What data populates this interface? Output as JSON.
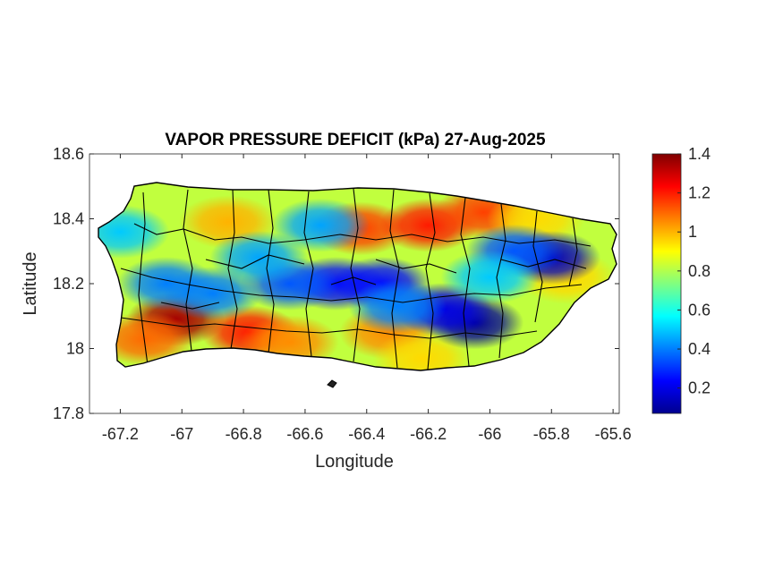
{
  "figure": {
    "title": "VAPOR PRESSURE DEFICIT (kPa) 27-Aug-2025",
    "xlabel": "Longitude",
    "ylabel": "Latitude"
  },
  "map": {
    "xlim": [
      -67.3,
      -65.58
    ],
    "ylim": [
      17.8,
      18.6
    ],
    "xticks": [
      -67.2,
      -67,
      -66.8,
      -66.6,
      -66.4,
      -66.2,
      -66,
      -65.8,
      -65.6
    ],
    "xtick_labels": [
      "-67.2",
      "-67",
      "-66.8",
      "-66.6",
      "-66.4",
      "-66.2",
      "-66",
      "-65.8",
      "-65.6"
    ],
    "yticks": [
      17.8,
      18,
      18.2,
      18.4,
      18.6
    ],
    "ytick_labels": [
      "17.8",
      "18",
      "18.2",
      "18.4",
      "18.6"
    ],
    "colormap": "jet",
    "field": "vapor pressure deficit",
    "units": "kPa",
    "boundaries": "municipalities of Puerto Rico",
    "region": "Puerto Rico"
  },
  "colorbar": {
    "range": [
      0.07,
      1.4
    ],
    "ticks": [
      0.2,
      0.4,
      0.6,
      0.8,
      1,
      1.2,
      1.4
    ],
    "tick_labels": [
      "0.2",
      "0.4",
      "0.6",
      "0.8",
      "1",
      "1.2",
      "1.4"
    ],
    "colors": [
      "#00008f",
      "#0000ff",
      "#0080ff",
      "#00ffff",
      "#80ff80",
      "#ffff00",
      "#ff8000",
      "#ff0000",
      "#800000"
    ]
  },
  "chart_data": {
    "type": "heatmap",
    "title": "VAPOR PRESSURE DEFICIT (kPa) 27-Aug-2025",
    "xlabel": "Longitude",
    "ylabel": "Latitude",
    "xlim": [
      -67.3,
      -65.58
    ],
    "ylim": [
      17.8,
      18.6
    ],
    "value_range": [
      0.07,
      1.4
    ],
    "base_value": 0.82,
    "features": [
      {
        "lon": -67.02,
        "lat": 18.09,
        "value": 1.35
      },
      {
        "lon": -67.12,
        "lat": 18.03,
        "value": 1.1
      },
      {
        "lon": -66.78,
        "lat": 18.05,
        "value": 1.2
      },
      {
        "lon": -66.65,
        "lat": 18.02,
        "value": 1.05
      },
      {
        "lon": -66.42,
        "lat": 18.37,
        "value": 1.15
      },
      {
        "lon": -66.2,
        "lat": 18.38,
        "value": 1.2
      },
      {
        "lon": -66.02,
        "lat": 18.42,
        "value": 1.15
      },
      {
        "lon": -66.85,
        "lat": 18.39,
        "value": 1.0
      },
      {
        "lon": -66.33,
        "lat": 18.05,
        "value": 1.05
      },
      {
        "lon": -66.22,
        "lat": 17.97,
        "value": 0.95
      },
      {
        "lon": -65.85,
        "lat": 18.4,
        "value": 0.95
      },
      {
        "lon": -65.75,
        "lat": 18.22,
        "value": 0.95
      },
      {
        "lon": -65.8,
        "lat": 18.28,
        "value": 0.15
      },
      {
        "lon": -65.92,
        "lat": 18.3,
        "value": 0.35
      },
      {
        "lon": -66.05,
        "lat": 18.08,
        "value": 0.1
      },
      {
        "lon": -66.15,
        "lat": 18.12,
        "value": 0.2
      },
      {
        "lon": -66.5,
        "lat": 18.2,
        "value": 0.25
      },
      {
        "lon": -66.35,
        "lat": 18.2,
        "value": 0.25
      },
      {
        "lon": -66.65,
        "lat": 18.2,
        "value": 0.35
      },
      {
        "lon": -66.9,
        "lat": 18.17,
        "value": 0.4
      },
      {
        "lon": -67.05,
        "lat": 18.2,
        "value": 0.4
      },
      {
        "lon": -66.75,
        "lat": 18.28,
        "value": 0.45
      },
      {
        "lon": -66.3,
        "lat": 18.13,
        "value": 0.4
      },
      {
        "lon": -67.2,
        "lat": 18.36,
        "value": 0.5
      },
      {
        "lon": -66.55,
        "lat": 18.38,
        "value": 0.45
      },
      {
        "lon": -66.0,
        "lat": 18.22,
        "value": 0.5
      }
    ]
  }
}
